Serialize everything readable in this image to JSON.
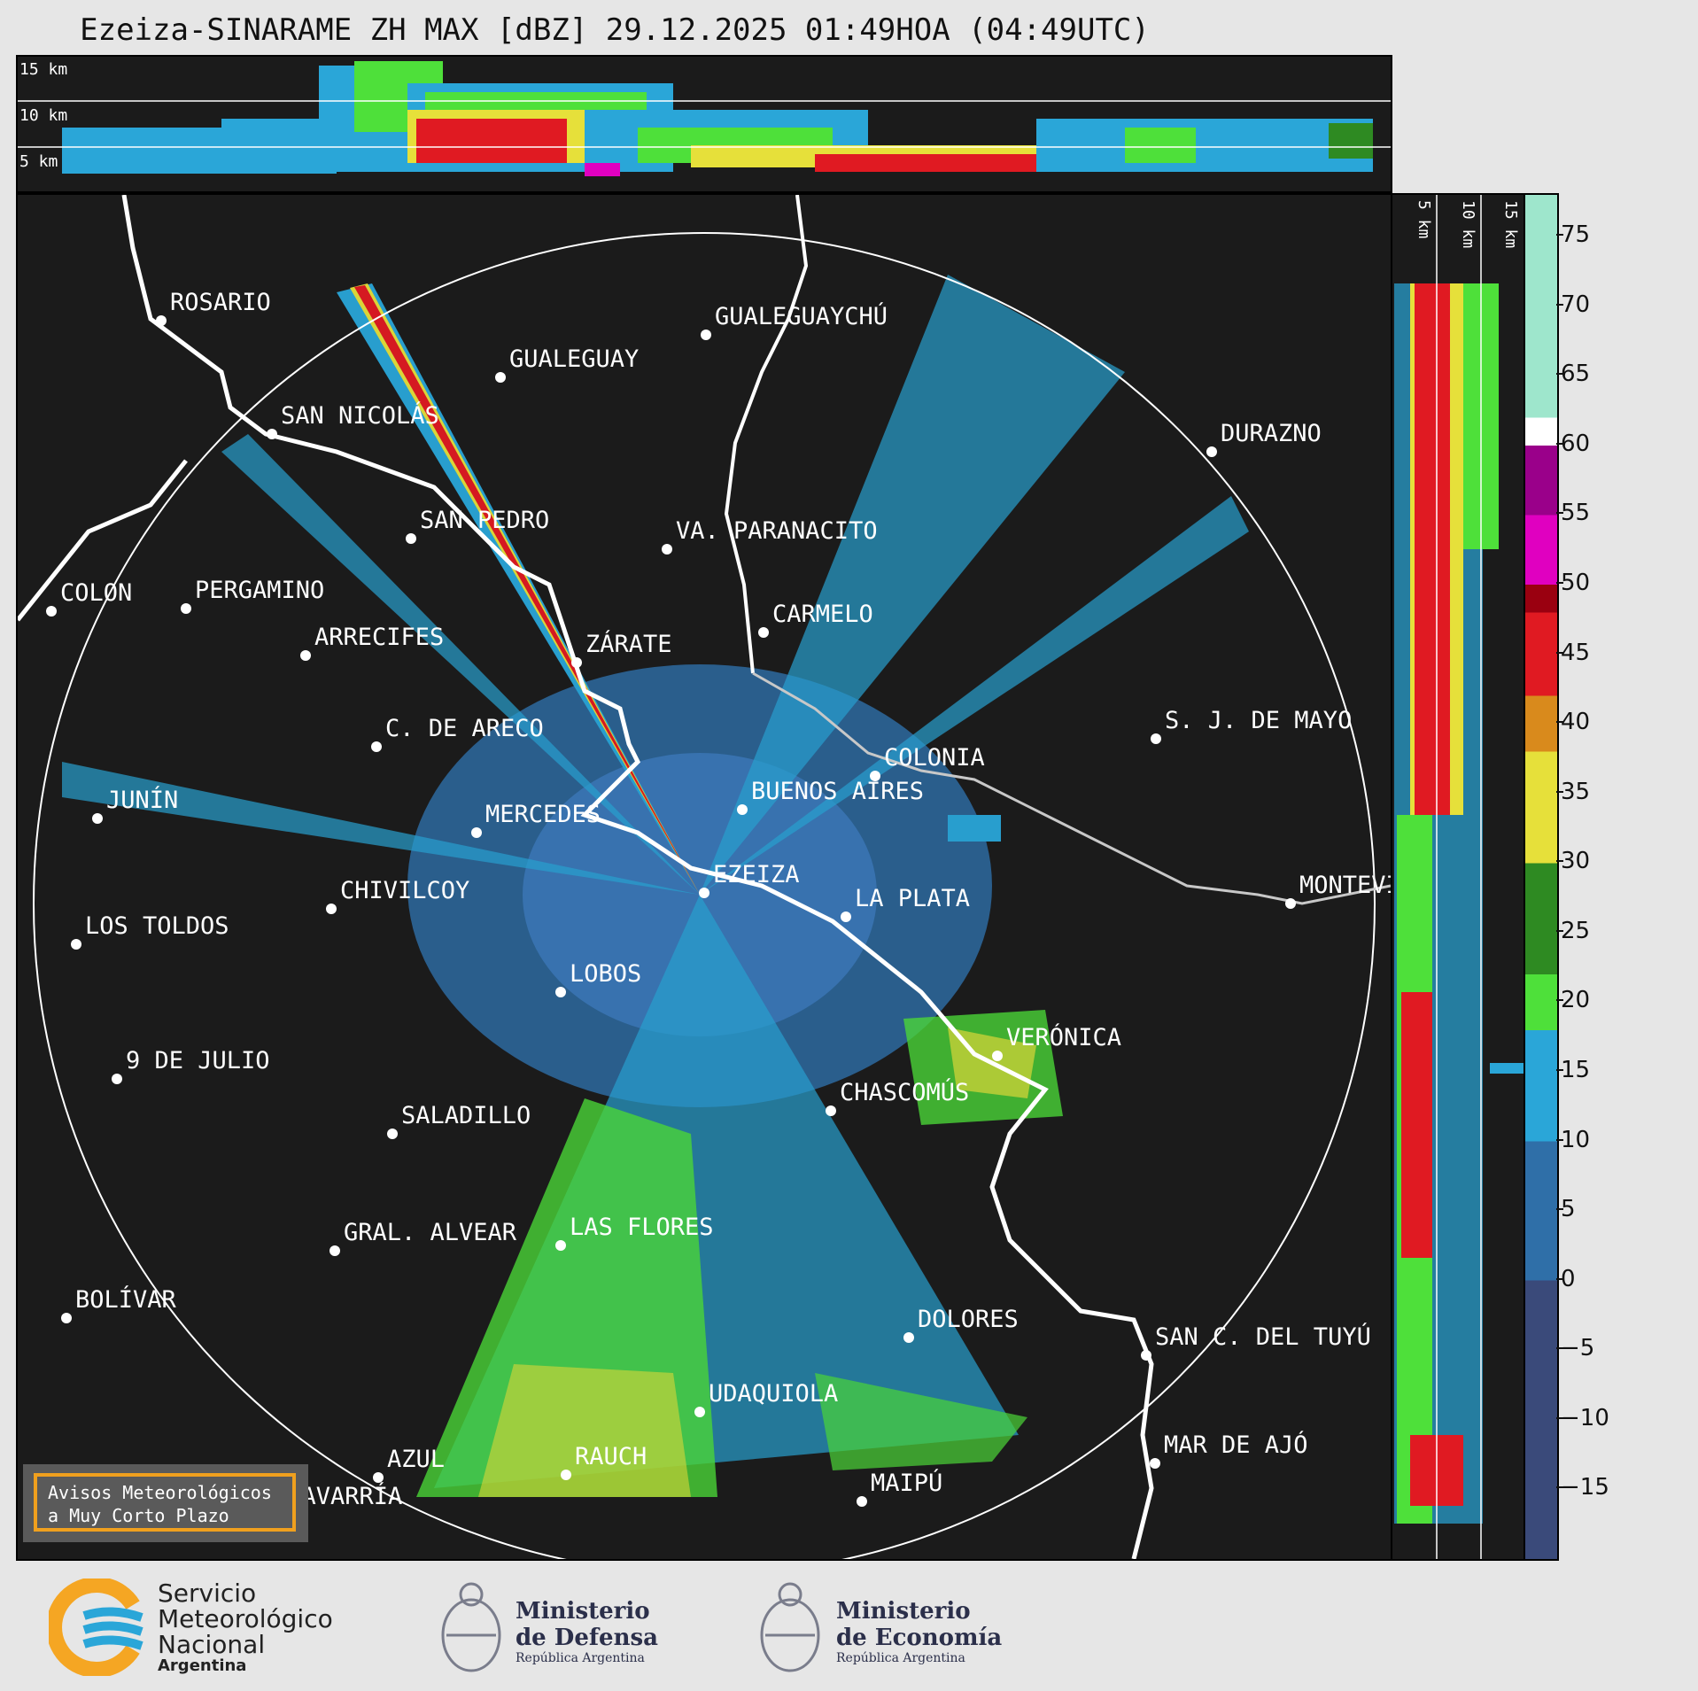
{
  "title": "Ezeiza-SINARAME ZH MAX [dBZ] 29.12.2025 01:49HOA (04:49UTC)",
  "top_panel": {
    "heights": [
      "15 km",
      "10 km",
      "5 km"
    ]
  },
  "side_panel": {
    "heights": [
      "5 km",
      "10 km",
      "15 km"
    ]
  },
  "colorbar": {
    "ticks": [
      "75",
      "70",
      "65",
      "60",
      "55",
      "50",
      "45",
      "40",
      "35",
      "30",
      "25",
      "20",
      "15",
      "10",
      "5",
      "0",
      "−5",
      "−10",
      "−15"
    ],
    "bands": [
      {
        "from": -20,
        "to": 0,
        "color": "#3a4a7a"
      },
      {
        "from": 0,
        "to": 10,
        "color": "#2f6fa8"
      },
      {
        "from": 10,
        "to": 18,
        "color": "#2aa6d8"
      },
      {
        "from": 18,
        "to": 22,
        "color": "#4ee03a"
      },
      {
        "from": 22,
        "to": 30,
        "color": "#2e8a22"
      },
      {
        "from": 30,
        "to": 38,
        "color": "#e6e03a"
      },
      {
        "from": 38,
        "to": 42,
        "color": "#d98a1c"
      },
      {
        "from": 42,
        "to": 48,
        "color": "#e01a22"
      },
      {
        "from": 48,
        "to": 50,
        "color": "#9a0010"
      },
      {
        "from": 50,
        "to": 55,
        "color": "#e000c0"
      },
      {
        "from": 55,
        "to": 60,
        "color": "#9a008a"
      },
      {
        "from": 60,
        "to": 62,
        "color": "#ffffff"
      },
      {
        "from": 62,
        "to": 78,
        "color": "#9ee6cc"
      }
    ]
  },
  "cities": [
    {
      "name": "ROSARIO"
    },
    {
      "name": "GUALEGUAYCHÚ"
    },
    {
      "name": "GUALEGUAY"
    },
    {
      "name": "SAN NICOLÁS"
    },
    {
      "name": "DURAZNO"
    },
    {
      "name": "SAN PEDRO"
    },
    {
      "name": "VA. PARANACITO"
    },
    {
      "name": "COLON"
    },
    {
      "name": "PERGAMINO"
    },
    {
      "name": "CARMELO"
    },
    {
      "name": "ARRECIFES"
    },
    {
      "name": "ZÁRATE"
    },
    {
      "name": "S. J. DE MAYO"
    },
    {
      "name": "C. DE ARECO"
    },
    {
      "name": "COLONIA"
    },
    {
      "name": "JUNÍN"
    },
    {
      "name": "BUENOS AIRES"
    },
    {
      "name": "MERCEDES"
    },
    {
      "name": "MONTEVIDEO"
    },
    {
      "name": "EZEIZA"
    },
    {
      "name": "CHIVILCOY"
    },
    {
      "name": "LA PLATA"
    },
    {
      "name": "LOS TOLDOS"
    },
    {
      "name": "LOBOS"
    },
    {
      "name": "VERÓNICA"
    },
    {
      "name": "9 DE JULIO"
    },
    {
      "name": "CHASCOMÚS"
    },
    {
      "name": "SALADILLO"
    },
    {
      "name": "GRAL. ALVEAR"
    },
    {
      "name": "LAS FLORES"
    },
    {
      "name": "DOLORES"
    },
    {
      "name": "BOLÍVAR"
    },
    {
      "name": "SAN C. DEL TUYÚ"
    },
    {
      "name": "UDAQUIOLA"
    },
    {
      "name": "MAR DE AJÓ"
    },
    {
      "name": "AZUL"
    },
    {
      "name": "RAUCH"
    },
    {
      "name": "OLAVARRÍA"
    },
    {
      "name": "MAIPÚ"
    }
  ],
  "warning_box": {
    "line1": "Avisos Meteorológicos",
    "line2": "a Muy Corto Plazo"
  },
  "logos": {
    "smn": {
      "l1": "Servicio",
      "l2": "Meteorológico",
      "l3": "Nacional",
      "l4": "Argentina"
    },
    "defensa": {
      "l1": "Ministerio",
      "l2": "de Defensa",
      "l3": "República Argentina"
    },
    "economia": {
      "l1": "Ministerio",
      "l2": "de Economía",
      "l3": "República Argentina"
    }
  },
  "colors": {
    "background": "#e6e6e6",
    "map_bg": "#1b1b1b",
    "coast": "#ffffff",
    "warning_border": "#f0a01e"
  }
}
